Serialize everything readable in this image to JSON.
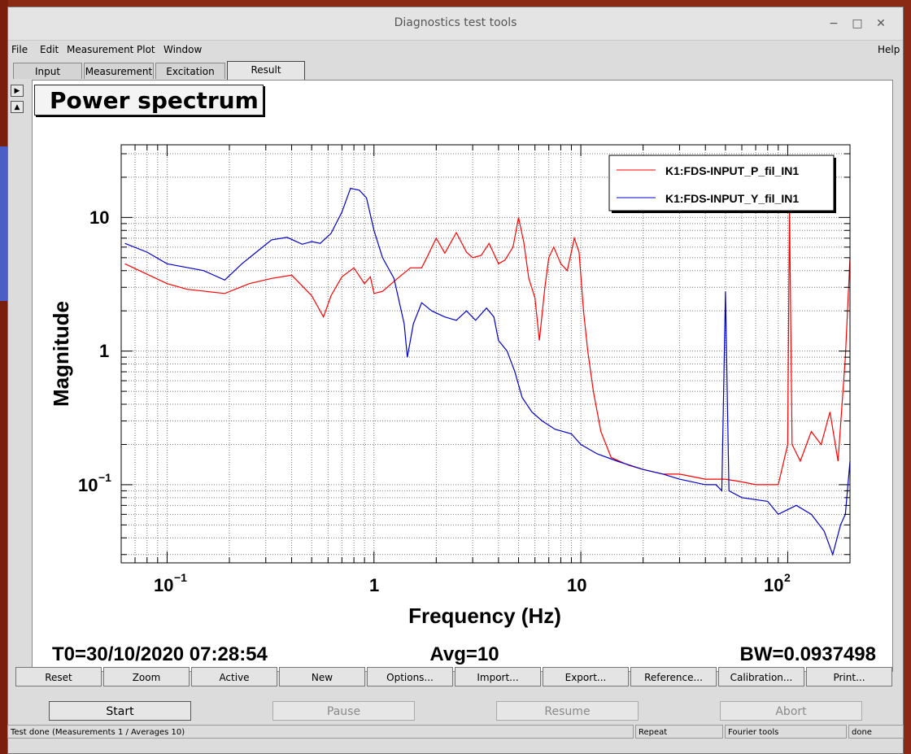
{
  "window": {
    "title": "Diagnostics test tools"
  },
  "menu": {
    "items": [
      "File",
      "Edit",
      "Measurement",
      "Plot",
      "Window"
    ],
    "help": "Help"
  },
  "tabs": [
    "Input",
    "Measurement",
    "Excitation",
    "Result"
  ],
  "active_tab": "Result",
  "plot": {
    "title": "Power spectrum",
    "xlabel": "Frequency (Hz)",
    "ylabel": "Magnitude",
    "x_ticks": [
      "10-1",
      "1",
      "10",
      "102"
    ],
    "y_ticks": [
      "10",
      "1",
      "10-1"
    ],
    "legend": [
      "K1:FDS-INPUT_P_fil_IN1",
      "K1:FDS-INPUT_Y_fil_IN1"
    ],
    "t0": "T0=30/10/2020 07:28:54",
    "avg": "Avg=10",
    "bw": "BW=0.0937498"
  },
  "colors": {
    "p": "#ff0000",
    "y": "#0000cc"
  },
  "chart_data": {
    "type": "line",
    "xscale": "log",
    "yscale": "log",
    "xlim": [
      0.06,
      200
    ],
    "ylim": [
      0.026,
      35
    ],
    "grid": true,
    "legend_position": "top-right",
    "series": [
      {
        "name": "K1:FDS-INPUT_P_fil_IN1",
        "color": "#ff0000",
        "points": [
          [
            0.0625,
            4.5
          ],
          [
            0.1,
            3.2
          ],
          [
            0.125,
            2.9
          ],
          [
            0.19,
            2.7
          ],
          [
            0.25,
            3.2
          ],
          [
            0.32,
            3.5
          ],
          [
            0.4,
            3.7
          ],
          [
            0.5,
            2.6
          ],
          [
            0.57,
            1.8
          ],
          [
            0.62,
            2.6
          ],
          [
            0.7,
            3.6
          ],
          [
            0.8,
            4.2
          ],
          [
            0.9,
            3.2
          ],
          [
            0.96,
            3.6
          ],
          [
            1.0,
            2.7
          ],
          [
            1.1,
            2.8
          ],
          [
            1.3,
            3.5
          ],
          [
            1.5,
            4.2
          ],
          [
            1.7,
            4.2
          ],
          [
            1.8,
            5.0
          ],
          [
            2.0,
            7.0
          ],
          [
            2.2,
            5.4
          ],
          [
            2.5,
            7.7
          ],
          [
            2.8,
            5.5
          ],
          [
            3.0,
            5.0
          ],
          [
            3.3,
            5.2
          ],
          [
            3.6,
            6.4
          ],
          [
            4.0,
            4.5
          ],
          [
            4.3,
            4.8
          ],
          [
            4.7,
            6.0
          ],
          [
            5.0,
            10.0
          ],
          [
            5.3,
            6.5
          ],
          [
            5.6,
            3.5
          ],
          [
            6.0,
            2.5
          ],
          [
            6.3,
            1.2
          ],
          [
            6.7,
            3.0
          ],
          [
            7.0,
            5.0
          ],
          [
            7.4,
            6.0
          ],
          [
            8.0,
            4.5
          ],
          [
            8.6,
            4.0
          ],
          [
            9.3,
            7.0
          ],
          [
            9.8,
            5.5
          ],
          [
            10.3,
            2.0
          ],
          [
            10.8,
            1.0
          ],
          [
            11.5,
            0.5
          ],
          [
            12.5,
            0.25
          ],
          [
            14,
            0.16
          ],
          [
            17,
            0.14
          ],
          [
            20,
            0.13
          ],
          [
            25,
            0.12
          ],
          [
            30,
            0.12
          ],
          [
            40,
            0.11
          ],
          [
            50,
            0.11
          ],
          [
            60,
            0.105
          ],
          [
            70,
            0.1
          ],
          [
            80,
            0.1
          ],
          [
            90,
            0.1
          ],
          [
            100,
            0.2
          ],
          [
            102,
            12.0
          ],
          [
            105,
            0.2
          ],
          [
            115,
            0.15
          ],
          [
            130,
            0.25
          ],
          [
            145,
            0.2
          ],
          [
            160,
            0.35
          ],
          [
            175,
            0.15
          ],
          [
            190,
            0.9
          ],
          [
            200,
            5.0
          ]
        ]
      },
      {
        "name": "K1:FDS-INPUT_Y_fil_IN1",
        "color": "#0000cc",
        "points": [
          [
            0.0625,
            6.4
          ],
          [
            0.08,
            5.5
          ],
          [
            0.1,
            4.5
          ],
          [
            0.15,
            4.0
          ],
          [
            0.19,
            3.4
          ],
          [
            0.23,
            4.5
          ],
          [
            0.27,
            5.5
          ],
          [
            0.32,
            6.8
          ],
          [
            0.38,
            7.1
          ],
          [
            0.45,
            6.3
          ],
          [
            0.5,
            6.6
          ],
          [
            0.55,
            6.4
          ],
          [
            0.62,
            7.6
          ],
          [
            0.7,
            11
          ],
          [
            0.77,
            16.5
          ],
          [
            0.85,
            16.0
          ],
          [
            0.92,
            14.0
          ],
          [
            1.0,
            8.0
          ],
          [
            1.1,
            5.0
          ],
          [
            1.25,
            3.5
          ],
          [
            1.4,
            1.6
          ],
          [
            1.45,
            0.9
          ],
          [
            1.55,
            1.6
          ],
          [
            1.7,
            2.3
          ],
          [
            1.9,
            2.0
          ],
          [
            2.2,
            1.8
          ],
          [
            2.5,
            1.7
          ],
          [
            2.8,
            2.0
          ],
          [
            3.1,
            1.7
          ],
          [
            3.5,
            2.1
          ],
          [
            3.8,
            1.8
          ],
          [
            4.0,
            1.2
          ],
          [
            4.4,
            1.0
          ],
          [
            4.8,
            0.7
          ],
          [
            5.2,
            0.45
          ],
          [
            5.8,
            0.35
          ],
          [
            6.5,
            0.3
          ],
          [
            7.5,
            0.26
          ],
          [
            9,
            0.24
          ],
          [
            10,
            0.2
          ],
          [
            12,
            0.17
          ],
          [
            15,
            0.15
          ],
          [
            20,
            0.13
          ],
          [
            25,
            0.12
          ],
          [
            30,
            0.11
          ],
          [
            40,
            0.1
          ],
          [
            45,
            0.1
          ],
          [
            48,
            0.09
          ],
          [
            50,
            2.8
          ],
          [
            52,
            0.09
          ],
          [
            60,
            0.08
          ],
          [
            80,
            0.075
          ],
          [
            90,
            0.06
          ],
          [
            100,
            0.065
          ],
          [
            110,
            0.07
          ],
          [
            130,
            0.06
          ],
          [
            150,
            0.045
          ],
          [
            165,
            0.03
          ],
          [
            180,
            0.05
          ],
          [
            190,
            0.06
          ],
          [
            200,
            0.15
          ]
        ]
      }
    ]
  },
  "toolbar": [
    "Reset",
    "Zoom",
    "Active",
    "New",
    "Options...",
    "Import...",
    "Export...",
    "Reference...",
    "Calibration...",
    "Print..."
  ],
  "controls": [
    "Start",
    "Pause",
    "Resume",
    "Abort"
  ],
  "status": {
    "main": "Test done (Measurements 1 / Averages 10)",
    "mode": "Repeat",
    "tool": "Fourier tools",
    "state": "done"
  }
}
